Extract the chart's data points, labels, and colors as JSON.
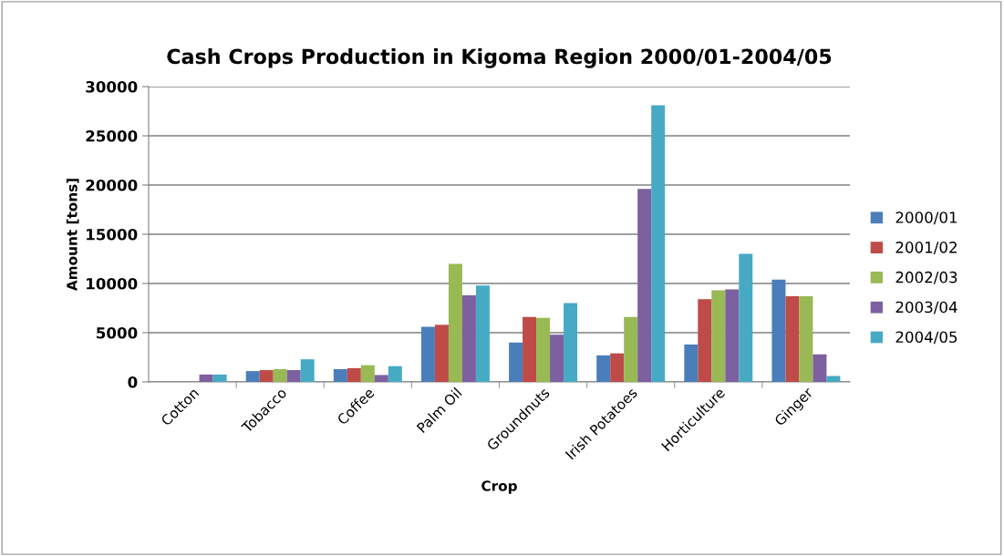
{
  "chart_data": {
    "type": "bar",
    "title": "Cash Crops Production in Kigoma Region 2000/01-2004/05",
    "xlabel": "Crop",
    "ylabel": "Amount [tons]",
    "categories": [
      "Cotton",
      "Tobacco",
      "Coffee",
      "Palm Oil",
      "Groundnuts",
      "Irish Potatoes",
      "Horticulture",
      "Ginger"
    ],
    "series": [
      {
        "name": "2000/01",
        "color": "#4a7ebb",
        "values": [
          0,
          1100,
          1300,
          5600,
          4000,
          2700,
          3800,
          10400
        ]
      },
      {
        "name": "2001/02",
        "color": "#be4b48",
        "values": [
          0,
          1200,
          1400,
          5800,
          6600,
          2900,
          8400,
          8700
        ]
      },
      {
        "name": "2002/03",
        "color": "#98b954",
        "values": [
          0,
          1300,
          1700,
          12000,
          6500,
          6600,
          9300,
          8700
        ]
      },
      {
        "name": "2003/04",
        "color": "#7d60a0",
        "values": [
          750,
          1200,
          700,
          8800,
          4800,
          19600,
          9400,
          2800
        ]
      },
      {
        "name": "2004/05",
        "color": "#46aac5",
        "values": [
          750,
          2300,
          1600,
          9800,
          8000,
          28100,
          13000,
          600
        ]
      }
    ],
    "ylim": [
      0,
      30000
    ],
    "yticks": [
      0,
      5000,
      10000,
      15000,
      20000,
      25000,
      30000
    ],
    "grid": "y",
    "legend": "right"
  }
}
